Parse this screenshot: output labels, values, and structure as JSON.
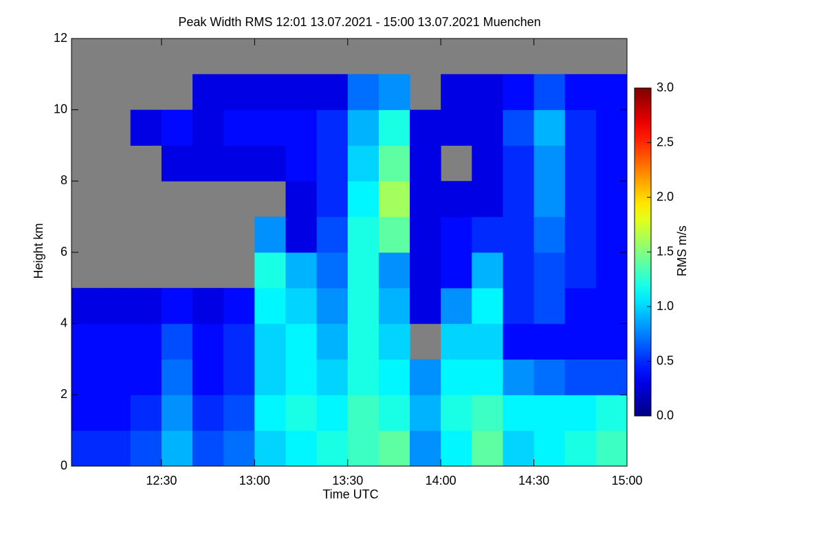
{
  "chart_data": {
    "type": "heatmap",
    "title": "Peak Width RMS   12:01 13.07.2021 - 15:00 13.07.2021 Muenchen",
    "xlabel": "Time UTC",
    "ylabel": "Height km",
    "colorbar_label": "RMS m/s",
    "colormap": "jet",
    "nodata_color": "#808080",
    "xlim": [
      721,
      900
    ],
    "ylim": [
      0,
      12
    ],
    "clim": [
      0,
      3
    ],
    "xticks": [
      {
        "value": 750,
        "label": "12:30"
      },
      {
        "value": 780,
        "label": "13:00"
      },
      {
        "value": 810,
        "label": "13:30"
      },
      {
        "value": 840,
        "label": "14:00"
      },
      {
        "value": 870,
        "label": "14:30"
      },
      {
        "value": 900,
        "label": "15:00"
      }
    ],
    "yticks": [
      0,
      2,
      4,
      6,
      8,
      10,
      12
    ],
    "cticks": [
      {
        "value": 0,
        "label": "0.0"
      },
      {
        "value": 0.5,
        "label": "0.5"
      },
      {
        "value": 1,
        "label": "1.0"
      },
      {
        "value": 1.5,
        "label": "1.5"
      },
      {
        "value": 2,
        "label": "2.0"
      },
      {
        "value": 2.5,
        "label": "2.5"
      },
      {
        "value": 3,
        "label": "3.0"
      }
    ],
    "xbins": [
      721,
      730,
      740,
      750,
      760,
      770,
      780,
      790,
      800,
      810,
      820,
      830,
      840,
      850,
      860,
      870,
      880,
      890,
      900
    ],
    "ybins": [
      0,
      1,
      2,
      3,
      4,
      5,
      6,
      7,
      8,
      9,
      10,
      11,
      12
    ],
    "values": [
      [
        0.5,
        0.5,
        0.6,
        0.9,
        0.6,
        0.7,
        1.0,
        1.1,
        1.2,
        1.3,
        1.4,
        0.8,
        1.1,
        1.4,
        1.0,
        1.1,
        1.2,
        1.3
      ],
      [
        0.4,
        0.4,
        0.5,
        0.8,
        0.5,
        0.6,
        1.1,
        1.2,
        1.1,
        1.3,
        1.2,
        0.9,
        1.2,
        1.3,
        1.1,
        1.1,
        1.1,
        1.2
      ],
      [
        0.4,
        0.4,
        0.4,
        0.7,
        0.4,
        0.5,
        1.0,
        1.1,
        1.0,
        1.2,
        1.1,
        0.8,
        1.1,
        1.1,
        0.8,
        0.7,
        0.6,
        0.6
      ],
      [
        0.4,
        0.4,
        0.4,
        0.6,
        0.4,
        0.5,
        1.0,
        1.1,
        0.9,
        1.2,
        1.0,
        null,
        1.0,
        1.0,
        0.4,
        0.4,
        0.4,
        0.4
      ],
      [
        0.3,
        0.3,
        0.3,
        0.4,
        0.3,
        0.4,
        1.1,
        1.0,
        0.8,
        1.2,
        0.9,
        0.3,
        0.8,
        1.1,
        0.5,
        0.6,
        0.4,
        0.4
      ],
      [
        null,
        null,
        null,
        null,
        null,
        null,
        1.2,
        0.9,
        0.7,
        1.2,
        0.8,
        0.3,
        0.4,
        0.9,
        0.5,
        0.6,
        0.5,
        0.4
      ],
      [
        null,
        null,
        null,
        null,
        null,
        null,
        0.8,
        0.3,
        0.6,
        1.2,
        1.4,
        0.3,
        0.4,
        0.5,
        0.5,
        0.7,
        0.5,
        0.4
      ],
      [
        null,
        null,
        null,
        null,
        null,
        null,
        null,
        0.3,
        0.5,
        1.1,
        1.6,
        0.3,
        0.3,
        0.3,
        0.5,
        0.8,
        0.5,
        0.4
      ],
      [
        null,
        null,
        null,
        0.3,
        0.3,
        0.3,
        0.3,
        0.4,
        0.5,
        1.0,
        1.4,
        0.3,
        null,
        0.3,
        0.5,
        0.8,
        0.5,
        0.4
      ],
      [
        null,
        null,
        0.3,
        0.4,
        0.3,
        0.4,
        0.4,
        0.4,
        0.5,
        0.9,
        1.2,
        0.3,
        0.3,
        0.3,
        0.6,
        0.9,
        0.5,
        0.4
      ],
      [
        null,
        null,
        null,
        null,
        0.3,
        0.3,
        0.3,
        0.3,
        0.3,
        0.7,
        0.8,
        null,
        0.3,
        0.3,
        0.4,
        0.6,
        0.4,
        0.4
      ],
      [
        null,
        null,
        null,
        null,
        null,
        null,
        null,
        null,
        null,
        null,
        null,
        null,
        null,
        null,
        null,
        null,
        null,
        null
      ]
    ]
  }
}
